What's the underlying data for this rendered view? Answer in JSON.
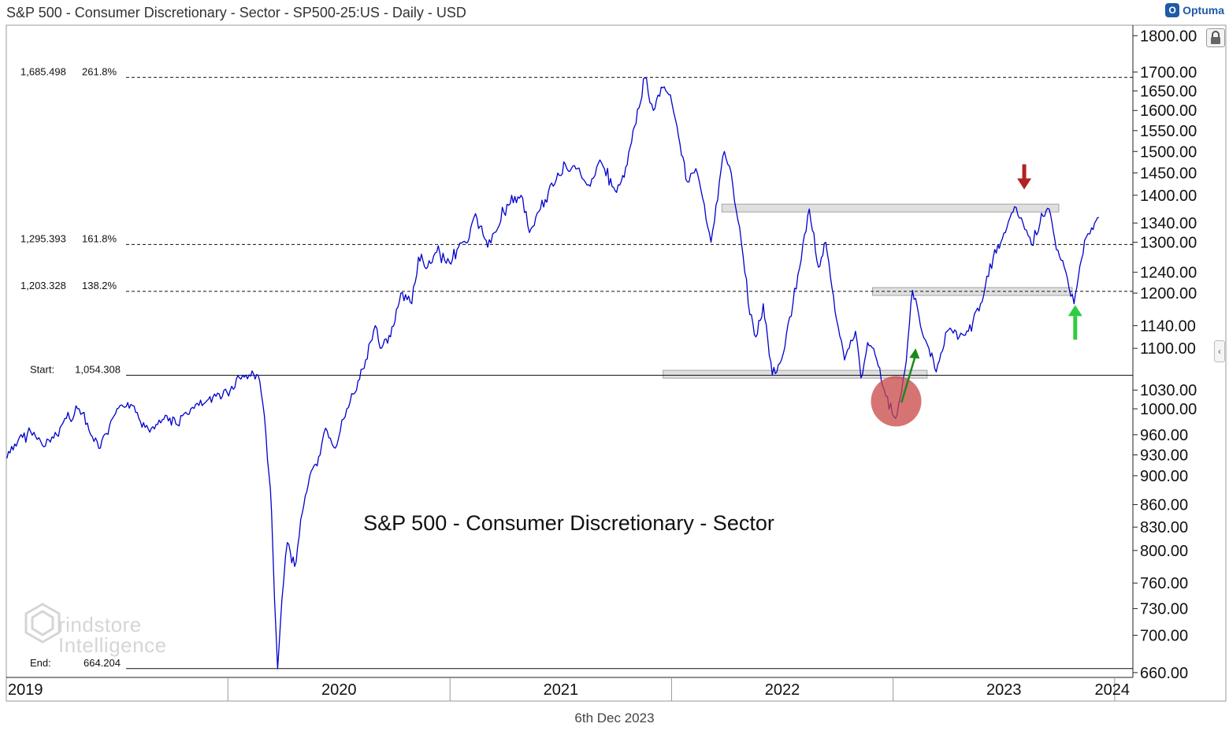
{
  "header": {
    "title": "S&P 500 - Consumer Discretionary - Sector - SP500-25:US - Daily - USD",
    "brand": "Optuma",
    "brand_logo": "O"
  },
  "footer": {
    "date": "6th Dec 2023"
  },
  "watermark": {
    "line1": "rindstore",
    "line2": "Intelligence"
  },
  "chart_data": {
    "type": "line",
    "title": "S&P 500 - Consumer Discretionary - Sector",
    "scale": "log",
    "ylim": [
      655,
      1830
    ],
    "xlim": [
      "2019-01-01",
      "2024-01-31"
    ],
    "y_ticks": [
      "1800.00",
      "1700.00",
      "1650.00",
      "1600.00",
      "1550.00",
      "1500.00",
      "1450.00",
      "1400.00",
      "1340.00",
      "1300.00",
      "1240.00",
      "1200.00",
      "1140.00",
      "1100.00",
      "1030.00",
      "1000.00",
      "960.00",
      "930.00",
      "900.00",
      "860.00",
      "830.00",
      "800.00",
      "760.00",
      "730.00",
      "700.00",
      "660.00"
    ],
    "x_ticks": [
      "2019",
      "2020",
      "2021",
      "2022",
      "2023",
      "2024"
    ],
    "grid": false,
    "series": [
      {
        "color": "#0000cc",
        "points": [
          [
            "2019-01-02",
            925
          ],
          [
            "2019-01-20",
            950
          ],
          [
            "2019-02-10",
            965
          ],
          [
            "2019-03-01",
            945
          ],
          [
            "2019-03-20",
            955
          ],
          [
            "2019-04-10",
            985
          ],
          [
            "2019-05-01",
            1000
          ],
          [
            "2019-05-20",
            960
          ],
          [
            "2019-06-05",
            940
          ],
          [
            "2019-06-25",
            985
          ],
          [
            "2019-07-20",
            1010
          ],
          [
            "2019-08-10",
            980
          ],
          [
            "2019-08-28",
            970
          ],
          [
            "2019-09-20",
            990
          ],
          [
            "2019-10-10",
            975
          ],
          [
            "2019-11-01",
            1000
          ],
          [
            "2019-11-25",
            1010
          ],
          [
            "2019-12-15",
            1025
          ],
          [
            "2020-01-05",
            1030
          ],
          [
            "2020-01-20",
            1050
          ],
          [
            "2020-02-05",
            1055
          ],
          [
            "2020-02-20",
            1054
          ],
          [
            "2020-03-01",
            990
          ],
          [
            "2020-03-09",
            900
          ],
          [
            "2020-03-13",
            850
          ],
          [
            "2020-03-18",
            740
          ],
          [
            "2020-03-23",
            664
          ],
          [
            "2020-03-30",
            740
          ],
          [
            "2020-04-08",
            810
          ],
          [
            "2020-04-20",
            780
          ],
          [
            "2020-04-30",
            840
          ],
          [
            "2020-05-15",
            900
          ],
          [
            "2020-06-01",
            930
          ],
          [
            "2020-06-10",
            970
          ],
          [
            "2020-06-26",
            940
          ],
          [
            "2020-07-15",
            1000
          ],
          [
            "2020-07-31",
            1030
          ],
          [
            "2020-08-15",
            1080
          ],
          [
            "2020-08-31",
            1140
          ],
          [
            "2020-09-08",
            1100
          ],
          [
            "2020-09-25",
            1120
          ],
          [
            "2020-10-12",
            1200
          ],
          [
            "2020-10-30",
            1180
          ],
          [
            "2020-11-10",
            1270
          ],
          [
            "2020-11-25",
            1250
          ],
          [
            "2020-12-10",
            1280
          ],
          [
            "2020-12-31",
            1260
          ],
          [
            "2021-01-15",
            1290
          ],
          [
            "2021-01-30",
            1300
          ],
          [
            "2021-02-12",
            1360
          ],
          [
            "2021-03-04",
            1290
          ],
          [
            "2021-03-15",
            1320
          ],
          [
            "2021-04-05",
            1380
          ],
          [
            "2021-04-28",
            1400
          ],
          [
            "2021-05-12",
            1320
          ],
          [
            "2021-05-30",
            1370
          ],
          [
            "2021-06-20",
            1420
          ],
          [
            "2021-07-10",
            1470
          ],
          [
            "2021-07-30",
            1460
          ],
          [
            "2021-08-20",
            1420
          ],
          [
            "2021-09-05",
            1480
          ],
          [
            "2021-09-30",
            1410
          ],
          [
            "2021-10-15",
            1440
          ],
          [
            "2021-11-01",
            1560
          ],
          [
            "2021-11-18",
            1685
          ],
          [
            "2021-12-02",
            1600
          ],
          [
            "2021-12-15",
            1660
          ],
          [
            "2021-12-30",
            1640
          ],
          [
            "2022-01-10",
            1560
          ],
          [
            "2022-01-27",
            1430
          ],
          [
            "2022-02-10",
            1460
          ],
          [
            "2022-02-24",
            1380
          ],
          [
            "2022-03-07",
            1300
          ],
          [
            "2022-03-29",
            1500
          ],
          [
            "2022-04-12",
            1420
          ],
          [
            "2022-04-26",
            1300
          ],
          [
            "2022-05-10",
            1160
          ],
          [
            "2022-05-20",
            1120
          ],
          [
            "2022-06-01",
            1180
          ],
          [
            "2022-06-16",
            1055
          ],
          [
            "2022-07-01",
            1080
          ],
          [
            "2022-07-20",
            1180
          ],
          [
            "2022-08-16",
            1370
          ],
          [
            "2022-08-31",
            1250
          ],
          [
            "2022-09-12",
            1300
          ],
          [
            "2022-09-30",
            1150
          ],
          [
            "2022-10-13",
            1080
          ],
          [
            "2022-10-31",
            1130
          ],
          [
            "2022-11-09",
            1050
          ],
          [
            "2022-11-20",
            1110
          ],
          [
            "2022-12-05",
            1080
          ],
          [
            "2022-12-20",
            1020
          ],
          [
            "2023-01-05",
            985
          ],
          [
            "2023-01-20",
            1060
          ],
          [
            "2023-02-02",
            1205
          ],
          [
            "2023-02-15",
            1140
          ],
          [
            "2023-03-01",
            1100
          ],
          [
            "2023-03-13",
            1060
          ],
          [
            "2023-03-31",
            1130
          ],
          [
            "2023-04-20",
            1120
          ],
          [
            "2023-05-05",
            1130
          ],
          [
            "2023-05-25",
            1180
          ],
          [
            "2023-06-15",
            1270
          ],
          [
            "2023-07-05",
            1320
          ],
          [
            "2023-07-20",
            1375
          ],
          [
            "2023-08-03",
            1340
          ],
          [
            "2023-08-17",
            1295
          ],
          [
            "2023-08-31",
            1340
          ],
          [
            "2023-09-15",
            1370
          ],
          [
            "2023-09-27",
            1285
          ],
          [
            "2023-10-10",
            1250
          ],
          [
            "2023-10-26",
            1180
          ],
          [
            "2023-11-02",
            1230
          ],
          [
            "2023-11-15",
            1310
          ],
          [
            "2023-11-24",
            1330
          ],
          [
            "2023-12-06",
            1352
          ]
        ]
      }
    ],
    "levels": [
      {
        "value": 1685.498,
        "value_label": "1,685.498",
        "pct_label": "261.8%",
        "style": "dashed"
      },
      {
        "value": 1295.393,
        "value_label": "1,295.393",
        "pct_label": "161.8%",
        "style": "dashed"
      },
      {
        "value": 1203.328,
        "value_label": "1,203.328",
        "pct_label": "138.2%",
        "style": "dashed"
      },
      {
        "value": 1054.308,
        "value_label": "1,054.308",
        "pct_label": "Start:",
        "style": "solid"
      },
      {
        "value": 664.204,
        "value_label": "664.204",
        "pct_label": "End:",
        "style": "solid"
      }
    ],
    "zones": [
      {
        "from": "2022-03-25",
        "to": "2023-10-01",
        "value": 1372
      },
      {
        "from": "2022-11-28",
        "to": "2023-10-23",
        "value": 1203
      },
      {
        "from": "2021-12-18",
        "to": "2023-02-26",
        "value": 1056
      }
    ],
    "markers": [
      {
        "type": "circle",
        "date": "2023-01-06",
        "value": 1012,
        "color": "#c84646"
      },
      {
        "type": "arrow-up",
        "date": "2023-01-20",
        "value": 1010,
        "to_value": 1100,
        "color": "#1a8a1a"
      },
      {
        "type": "arrow-down",
        "date": "2023-08-05",
        "value": 1470,
        "color": "#b22222"
      },
      {
        "type": "arrow-up",
        "date": "2023-10-28",
        "value": 1115,
        "color": "#2ecc40"
      }
    ]
  }
}
